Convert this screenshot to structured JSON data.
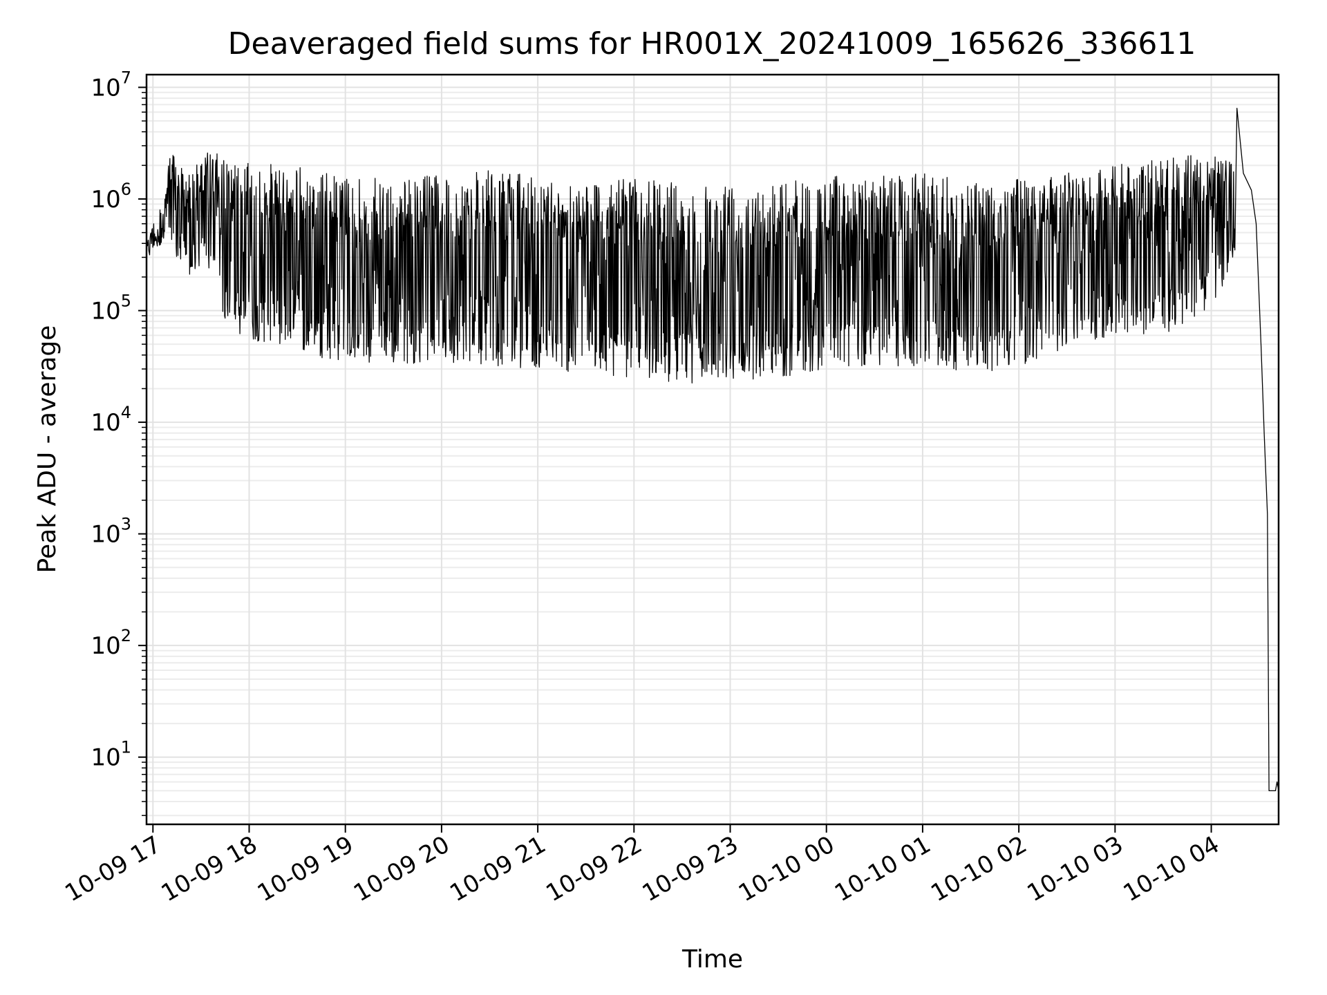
{
  "chart_data": {
    "type": "line",
    "title": "Deaveraged field sums for HR001X_20241009_165626_336611",
    "xlabel": "Time",
    "ylabel": "Peak ADU - average",
    "yscale": "log",
    "ylim": [
      2.5,
      13000000
    ],
    "xlim": [
      "2024-10-09 16:56",
      "2024-10-10 04:42"
    ],
    "grid": true,
    "x_ticks": [
      {
        "value": "2024-10-09 17:00",
        "label": "10-09 17"
      },
      {
        "value": "2024-10-09 18:00",
        "label": "10-09 18"
      },
      {
        "value": "2024-10-09 19:00",
        "label": "10-09 19"
      },
      {
        "value": "2024-10-09 20:00",
        "label": "10-09 20"
      },
      {
        "value": "2024-10-09 21:00",
        "label": "10-09 21"
      },
      {
        "value": "2024-10-09 22:00",
        "label": "10-09 22"
      },
      {
        "value": "2024-10-09 23:00",
        "label": "10-09 23"
      },
      {
        "value": "2024-10-10 00:00",
        "label": "10-10 00"
      },
      {
        "value": "2024-10-10 01:00",
        "label": "10-10 01"
      },
      {
        "value": "2024-10-10 02:00",
        "label": "10-10 02"
      },
      {
        "value": "2024-10-10 03:00",
        "label": "10-10 03"
      },
      {
        "value": "2024-10-10 04:00",
        "label": "10-10 04"
      }
    ],
    "y_ticks": [
      {
        "value": 10,
        "base": "10",
        "exp": "1"
      },
      {
        "value": 100,
        "base": "10",
        "exp": "2"
      },
      {
        "value": 1000,
        "base": "10",
        "exp": "3"
      },
      {
        "value": 10000,
        "base": "10",
        "exp": "4"
      },
      {
        "value": 100000,
        "base": "10",
        "exp": "5"
      },
      {
        "value": 1000000,
        "base": "10",
        "exp": "6"
      },
      {
        "value": 10000000,
        "base": "10",
        "exp": "7"
      }
    ],
    "series": [
      {
        "color": "#000000",
        "upper_envelope": [
          [
            "2024-10-09 16:56",
            420000
          ],
          [
            "2024-10-09 17:00",
            600000
          ],
          [
            "2024-10-09 17:03",
            900000
          ],
          [
            "2024-10-09 17:06",
            750000
          ],
          [
            "2024-10-09 17:10",
            2800000
          ],
          [
            "2024-10-09 17:20",
            1700000
          ],
          [
            "2024-10-09 17:30",
            2200000
          ],
          [
            "2024-10-09 17:35",
            2800000
          ],
          [
            "2024-10-09 17:50",
            2100000
          ],
          [
            "2024-10-09 18:00",
            2100000
          ],
          [
            "2024-10-09 18:30",
            2000000
          ],
          [
            "2024-10-09 19:00",
            1600000
          ],
          [
            "2024-10-09 19:30",
            1500000
          ],
          [
            "2024-10-09 20:00",
            1700000
          ],
          [
            "2024-10-09 20:30",
            1800000
          ],
          [
            "2024-10-09 21:00",
            1600000
          ],
          [
            "2024-10-09 21:30",
            1500000
          ],
          [
            "2024-10-09 22:00",
            1500000
          ],
          [
            "2024-10-09 22:30",
            1450000
          ],
          [
            "2024-10-09 23:00",
            1450000
          ],
          [
            "2024-10-09 23:30",
            1450000
          ],
          [
            "2024-10-10 00:00",
            1600000
          ],
          [
            "2024-10-10 00:30",
            1700000
          ],
          [
            "2024-10-10 01:00",
            1700000
          ],
          [
            "2024-10-10 01:30",
            1500000
          ],
          [
            "2024-10-10 02:00",
            1500000
          ],
          [
            "2024-10-10 02:30",
            1700000
          ],
          [
            "2024-10-10 03:00",
            2000000
          ],
          [
            "2024-10-10 03:30",
            2400000
          ],
          [
            "2024-10-10 04:00",
            2500000
          ],
          [
            "2024-10-10 04:12",
            2200000
          ],
          [
            "2024-10-10 04:16",
            6500000
          ],
          [
            "2024-10-10 04:20",
            1700000
          ],
          [
            "2024-10-10 04:25",
            1200000
          ],
          [
            "2024-10-10 04:28",
            600000
          ],
          [
            "2024-10-10 04:31",
            50000
          ],
          [
            "2024-10-10 04:33",
            8000
          ],
          [
            "2024-10-10 04:35",
            1500
          ],
          [
            "2024-10-10 04:36",
            5
          ],
          [
            "2024-10-10 04:40",
            5
          ],
          [
            "2024-10-10 04:41",
            6
          ],
          [
            "2024-10-10 04:42",
            5
          ]
        ],
        "lower_envelope": [
          [
            "2024-10-09 16:56",
            270000
          ],
          [
            "2024-10-09 17:00",
            350000
          ],
          [
            "2024-10-09 17:06",
            400000
          ],
          [
            "2024-10-09 17:10",
            400000
          ],
          [
            "2024-10-09 17:20",
            180000
          ],
          [
            "2024-10-09 17:30",
            250000
          ],
          [
            "2024-10-09 17:40",
            200000
          ],
          [
            "2024-10-09 17:45",
            70000
          ],
          [
            "2024-10-09 18:00",
            55000
          ],
          [
            "2024-10-09 18:30",
            45000
          ],
          [
            "2024-10-09 19:00",
            32000
          ],
          [
            "2024-10-09 19:30",
            32000
          ],
          [
            "2024-10-09 20:00",
            35000
          ],
          [
            "2024-10-09 20:30",
            32000
          ],
          [
            "2024-10-09 21:00",
            30000
          ],
          [
            "2024-10-09 21:30",
            27000
          ],
          [
            "2024-10-09 22:00",
            25000
          ],
          [
            "2024-10-09 22:30",
            22000
          ],
          [
            "2024-10-09 23:00",
            23000
          ],
          [
            "2024-10-09 23:30",
            25000
          ],
          [
            "2024-10-10 00:00",
            30000
          ],
          [
            "2024-10-10 00:30",
            32000
          ],
          [
            "2024-10-10 01:00",
            30000
          ],
          [
            "2024-10-10 01:30",
            28000
          ],
          [
            "2024-10-10 02:00",
            30000
          ],
          [
            "2024-10-10 02:30",
            45000
          ],
          [
            "2024-10-10 03:00",
            60000
          ],
          [
            "2024-10-10 03:30",
            60000
          ],
          [
            "2024-10-10 04:00",
            100000
          ],
          [
            "2024-10-10 04:15",
            300000
          ]
        ]
      }
    ]
  }
}
